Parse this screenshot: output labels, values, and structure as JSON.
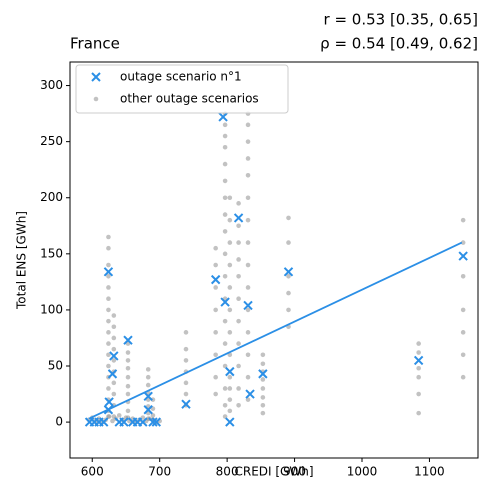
{
  "chart_data": {
    "type": "scatter",
    "title": "France",
    "annotation": [
      "r = 0.53 [0.35, 0.65]",
      "ρ = 0.54 [0.49, 0.62]"
    ],
    "xlabel": "CREDI [GWh]",
    "ylabel": "Total ENS [GWh]",
    "xlim": [
      567,
      1172
    ],
    "ylim": [
      -32,
      321
    ],
    "xticks": [
      600,
      700,
      800,
      900,
      1000,
      1100
    ],
    "yticks": [
      0,
      50,
      100,
      150,
      200,
      250,
      300
    ],
    "legend": "upper left",
    "series": [
      {
        "name": "outage scenario n°1",
        "color": "#2b8fe6",
        "marker": "x",
        "x": [
          624,
          653,
          632,
          630,
          625,
          624,
          683,
          683,
          739,
          783,
          794,
          797,
          804,
          804,
          817,
          831,
          834,
          853,
          891,
          1084,
          1150,
          596,
          603,
          610,
          617,
          640,
          647,
          660,
          667,
          675,
          690,
          695
        ],
        "values": [
          134,
          73,
          59,
          43,
          18,
          11,
          23,
          11,
          16,
          127,
          272,
          107,
          45,
          0,
          182,
          104,
          25,
          43,
          134,
          55,
          148,
          0,
          0,
          0,
          0,
          0,
          0,
          0,
          0,
          0,
          0,
          0
        ]
      },
      {
        "name": "other outage scenarios",
        "color": "#999999",
        "marker": "o",
        "x": [
          624,
          624,
          624,
          624,
          624,
          624,
          624,
          624,
          624,
          624,
          624,
          624,
          624,
          624,
          624,
          624,
          624,
          632,
          632,
          632,
          632,
          632,
          632,
          632,
          632,
          632,
          632,
          653,
          653,
          653,
          653,
          653,
          653,
          653,
          653,
          653,
          653,
          683,
          683,
          683,
          683,
          683,
          683,
          683,
          683,
          690,
          690,
          690,
          690,
          739,
          739,
          739,
          739,
          739,
          739,
          739,
          783,
          783,
          783,
          783,
          783,
          783,
          783,
          783,
          797,
          797,
          797,
          797,
          797,
          797,
          797,
          797,
          797,
          797,
          797,
          797,
          797,
          797,
          797,
          797,
          797,
          797,
          804,
          804,
          804,
          804,
          804,
          804,
          804,
          804,
          804,
          804,
          804,
          804,
          817,
          817,
          817,
          817,
          817,
          817,
          817,
          817,
          817,
          817,
          817,
          831,
          831,
          831,
          831,
          831,
          831,
          831,
          831,
          831,
          831,
          831,
          831,
          831,
          831,
          831,
          853,
          853,
          853,
          853,
          853,
          853,
          853,
          853,
          891,
          891,
          891,
          891,
          891,
          891,
          1084,
          1084,
          1084,
          1084,
          1084,
          1084,
          1150,
          1150,
          1150,
          1150,
          1150,
          1150,
          1150,
          595,
          600,
          605,
          610,
          615,
          620,
          625,
          630,
          635,
          640,
          645,
          650,
          655,
          660,
          665,
          670,
          675,
          680,
          685,
          690,
          695,
          700
        ],
        "values": [
          165,
          155,
          140,
          130,
          120,
          110,
          100,
          90,
          80,
          70,
          60,
          50,
          40,
          30,
          20,
          10,
          5,
          95,
          85,
          75,
          65,
          55,
          45,
          35,
          25,
          15,
          5,
          70,
          62,
          55,
          48,
          40,
          32,
          25,
          18,
          10,
          4,
          47,
          40,
          33,
          26,
          20,
          14,
          8,
          3,
          20,
          12,
          6,
          2,
          80,
          65,
          55,
          45,
          35,
          25,
          15,
          155,
          140,
          120,
          100,
          80,
          60,
          40,
          25,
          275,
          265,
          255,
          245,
          230,
          215,
          200,
          185,
          170,
          150,
          130,
          110,
          90,
          70,
          50,
          30,
          15,
          5,
          200,
          180,
          160,
          140,
          120,
          100,
          80,
          60,
          40,
          30,
          20,
          10,
          195,
          175,
          160,
          145,
          130,
          110,
          90,
          70,
          50,
          30,
          15,
          275,
          265,
          250,
          235,
          220,
          200,
          180,
          160,
          140,
          120,
          100,
          80,
          60,
          40,
          20,
          60,
          52,
          45,
          38,
          30,
          22,
          15,
          8,
          182,
          160,
          130,
          115,
          100,
          85,
          70,
          62,
          48,
          40,
          25,
          8,
          180,
          160,
          130,
          100,
          80,
          60,
          40,
          2,
          4,
          1,
          3,
          0,
          2,
          5,
          1,
          3,
          6,
          2,
          4,
          1,
          3,
          0,
          2,
          4,
          1,
          3,
          2,
          0,
          1
        ]
      }
    ],
    "fit": {
      "color": "#2b8fe6",
      "x": [
        595,
        1148
      ],
      "values": [
        3,
        160
      ]
    }
  }
}
